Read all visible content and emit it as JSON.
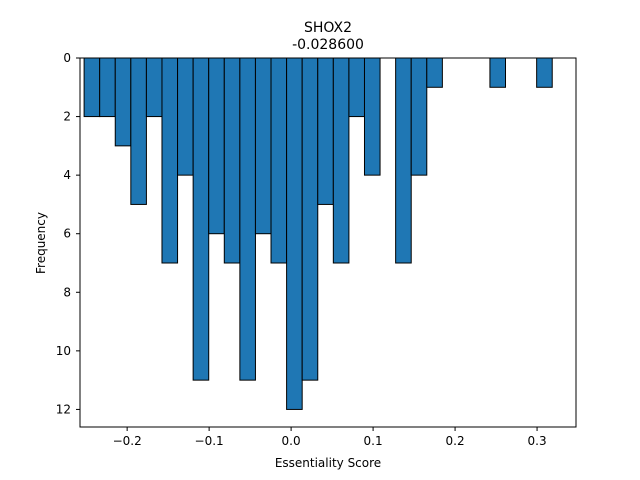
{
  "chart_data": {
    "type": "bar",
    "title": "SHOX2",
    "subtitle": "-0.028600",
    "xlabel": "Essentiality Score",
    "ylabel": "Frequency",
    "xlim": [
      -0.2575,
      0.3475
    ],
    "ylim": [
      12.6,
      0
    ],
    "y_inverted": true,
    "bin_width": 0.019,
    "bars": [
      {
        "x0": -0.2525,
        "value": 2
      },
      {
        "x0": -0.2335,
        "value": 2
      },
      {
        "x0": -0.2145,
        "value": 3
      },
      {
        "x0": -0.1955,
        "value": 5
      },
      {
        "x0": -0.1765,
        "value": 2
      },
      {
        "x0": -0.1575,
        "value": 7
      },
      {
        "x0": -0.1385,
        "value": 4
      },
      {
        "x0": -0.1195,
        "value": 11
      },
      {
        "x0": -0.1005,
        "value": 6
      },
      {
        "x0": -0.0815,
        "value": 7
      },
      {
        "x0": -0.0625,
        "value": 11
      },
      {
        "x0": -0.0435,
        "value": 6
      },
      {
        "x0": -0.0245,
        "value": 7
      },
      {
        "x0": -0.0055,
        "value": 12
      },
      {
        "x0": 0.0135,
        "value": 11
      },
      {
        "x0": 0.0325,
        "value": 5
      },
      {
        "x0": 0.0515,
        "value": 7
      },
      {
        "x0": 0.0705,
        "value": 2
      },
      {
        "x0": 0.0895,
        "value": 4
      },
      {
        "x0": 0.1275,
        "value": 7
      },
      {
        "x0": 0.1465,
        "value": 4
      },
      {
        "x0": 0.1655,
        "value": 1
      },
      {
        "x0": 0.2425,
        "value": 1
      },
      {
        "x0": 0.2995,
        "value": 1
      }
    ],
    "x_ticks": [
      -0.2,
      -0.1,
      0.0,
      0.1,
      0.2,
      0.3
    ],
    "x_tick_labels": [
      "−0.2",
      "−0.1",
      "0.0",
      "0.1",
      "0.2",
      "0.3"
    ],
    "y_ticks": [
      0,
      2,
      4,
      6,
      8,
      10,
      12
    ],
    "y_tick_labels": [
      "0",
      "2",
      "4",
      "6",
      "8",
      "10",
      "12"
    ],
    "bar_color": "#1f77b4",
    "edge_color": "#000000",
    "grid": false,
    "legend": "none"
  }
}
